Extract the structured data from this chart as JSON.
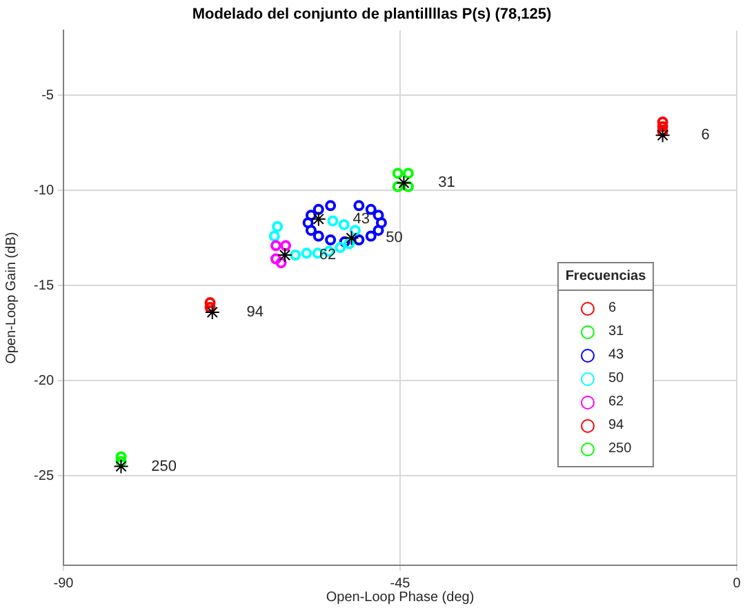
{
  "chart_data": {
    "type": "scatter",
    "title": "Modelado del conjunto de plantillllas P(s) (78,125)",
    "xlabel": "Open-Loop Phase (deg)",
    "ylabel": "Open-Loop Gain (dB)",
    "legend_title": "Frecuencias",
    "legend": "right",
    "marker": "circle",
    "grid": true,
    "xlim": [
      -90,
      0
    ],
    "xticks": [
      -90,
      -45,
      0
    ],
    "ylim": [
      -29.7,
      -1.6
    ],
    "yticks": [
      -25,
      -20,
      -15,
      -10,
      -5
    ],
    "series": [
      {
        "name": "6",
        "color": "#ff0000",
        "x": [
          -9.9,
          -9.9,
          -9.9
        ],
        "values": [
          -6.4,
          -6.65,
          -6.9
        ]
      },
      {
        "name": "31",
        "color": "#00ff00",
        "x": [
          -45.3,
          -43.9,
          -45.3,
          -43.9
        ],
        "values": [
          -9.1,
          -9.1,
          -9.8,
          -9.8
        ]
      },
      {
        "name": "43",
        "color": "#0000ff",
        "x": [
          -47.5,
          -47.9,
          -48.9,
          -50.5,
          -54.3,
          -55.9,
          -56.9,
          -57.3,
          -56.9,
          -55.9,
          -54.3,
          -52.4,
          -50.5,
          -48.9,
          -47.9
        ],
        "values": [
          -11.7,
          -11.3,
          -11.0,
          -10.8,
          -10.8,
          -11.0,
          -11.3,
          -11.7,
          -12.1,
          -12.4,
          -12.6,
          -12.7,
          -12.6,
          -12.4,
          -12.1
        ]
      },
      {
        "name": "50",
        "color": "#00ffff",
        "x": [
          -61.4,
          -61.8,
          -59.0,
          -57.5,
          -56.0,
          -54.5,
          -53.0,
          -51.8,
          -51.0,
          -52.5,
          -54.0
        ],
        "values": [
          -11.9,
          -12.4,
          -13.4,
          -13.3,
          -13.3,
          -13.2,
          -13.0,
          -12.8,
          -12.1,
          -11.8,
          -11.6
        ]
      },
      {
        "name": "62",
        "color": "#ff00ff",
        "x": [
          -61.6,
          -60.3,
          -61.6,
          -60.9
        ],
        "values": [
          -12.9,
          -12.9,
          -13.6,
          -13.8
        ]
      },
      {
        "name": "94",
        "color": "#ff0000",
        "x": [
          -70.4,
          -70.4
        ],
        "values": [
          -15.9,
          -16.15
        ]
      },
      {
        "name": "250",
        "color": "#00ff00",
        "x": [
          -82.3,
          -82.3
        ],
        "values": [
          -24.0,
          -24.25
        ]
      },
      {
        "color": "#000000",
        "marker": "cross",
        "x": [
          -9.9,
          -44.5,
          -55.9,
          -51.5,
          -60.4,
          -70.1,
          -82.3
        ],
        "values": [
          -7.1,
          -9.6,
          -11.5,
          -12.5,
          -13.4,
          -16.4,
          -24.5
        ]
      }
    ],
    "annotations": [
      {
        "text": "6",
        "x": -9.9,
        "y": -7.1
      },
      {
        "text": "31",
        "x": -44.5,
        "y": -9.6
      },
      {
        "text": "43",
        "x": -55.9,
        "y": -11.5
      },
      {
        "text": "50",
        "x": -51.5,
        "y": -12.5
      },
      {
        "text": "62",
        "x": -60.4,
        "y": -13.4
      },
      {
        "text": "94",
        "x": -70.1,
        "y": -16.4
      },
      {
        "text": "250",
        "x": -82.3,
        "y": -24.5
      }
    ]
  }
}
